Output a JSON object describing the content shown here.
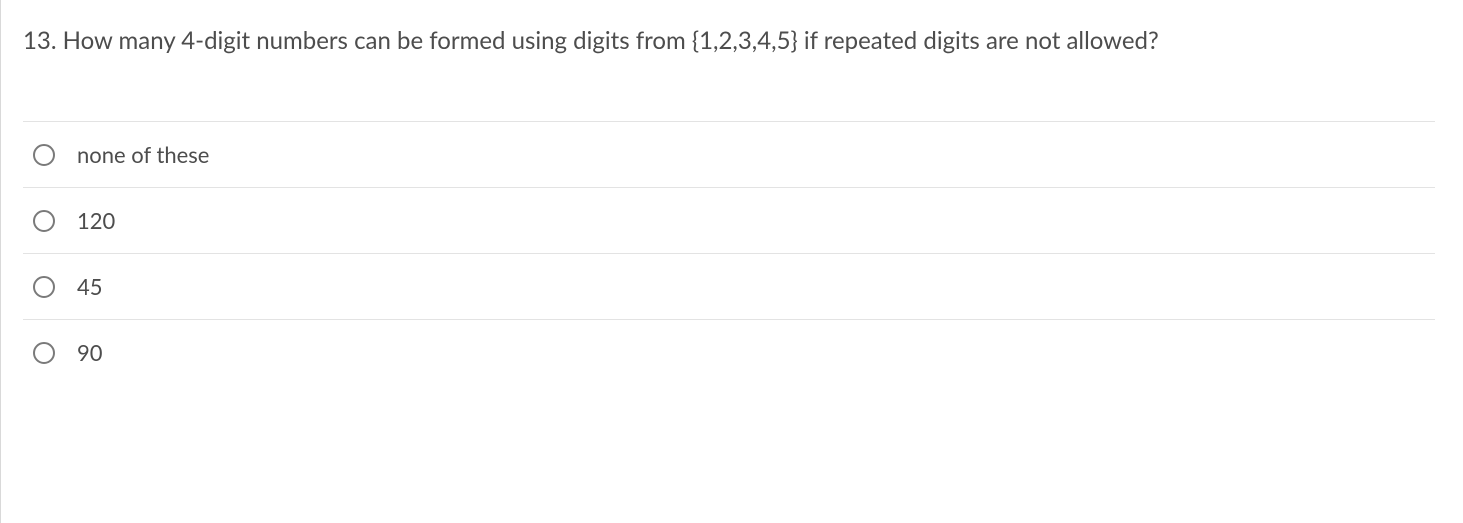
{
  "question": {
    "number": "13.",
    "text": "How many 4-digit numbers can be formed using digits from {1,2,3,4,5} if repeated digits are not allowed?"
  },
  "options": [
    {
      "label": "none of these"
    },
    {
      "label": "120"
    },
    {
      "label": "45"
    },
    {
      "label": "90"
    }
  ],
  "colors": {
    "text": "#4d4d4d",
    "border": "#e3e3e3",
    "left_rule": "#d9d9d9",
    "radio_border": "#7a7a7a",
    "background": "#ffffff"
  },
  "typography": {
    "question_fontsize": 24,
    "option_fontsize": 22,
    "font_family": "Lato, Helvetica Neue, Helvetica, Arial, sans-serif"
  }
}
